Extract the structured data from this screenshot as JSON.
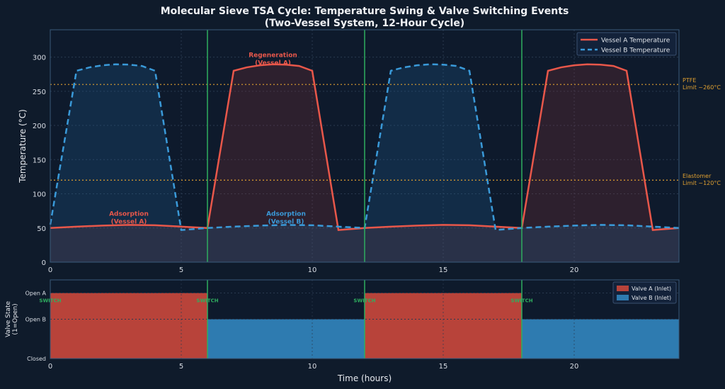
{
  "chart_data": [
    {
      "type": "line",
      "title": "Molecular Sieve TSA Cycle: Temperature Swing & Valve Switching Events",
      "subtitle": "(Two-Vessel System, 12-Hour Cycle)",
      "xlabel": "",
      "ylabel": "Temperature (°C)",
      "xlim": [
        0,
        24
      ],
      "ylim": [
        0,
        340
      ],
      "xticks": [
        0,
        5,
        10,
        15,
        20
      ],
      "yticks": [
        0,
        50,
        100,
        150,
        200,
        250,
        300
      ],
      "grid": true,
      "legend_placement": "top-right",
      "series": [
        {
          "name": "Vessel A Temperature",
          "color": "#e8574a",
          "style": "solid",
          "points": [
            [
              0,
              50
            ],
            [
              1,
              52
            ],
            [
              2,
              53.5
            ],
            [
              3,
              54.5
            ],
            [
              4,
              54
            ],
            [
              5,
              52
            ],
            [
              6,
              50
            ],
            [
              7,
              280
            ],
            [
              7.5,
              285
            ],
            [
              8,
              288
            ],
            [
              8.5,
              289.5
            ],
            [
              9,
              289
            ],
            [
              9.5,
              287
            ],
            [
              10,
              280
            ],
            [
              11,
              47
            ],
            [
              12,
              50
            ],
            [
              13,
              52
            ],
            [
              14,
              53.5
            ],
            [
              15,
              54.5
            ],
            [
              16,
              54
            ],
            [
              17,
              52
            ],
            [
              18,
              50
            ],
            [
              19,
              280
            ],
            [
              19.5,
              285
            ],
            [
              20,
              288
            ],
            [
              20.5,
              289.5
            ],
            [
              21,
              289
            ],
            [
              21.5,
              287
            ],
            [
              22,
              280
            ],
            [
              23,
              47
            ],
            [
              24,
              50
            ]
          ]
        },
        {
          "name": "Vessel B Temperature",
          "color": "#3a9ad9",
          "style": "dashed",
          "points": [
            [
              0,
              55
            ],
            [
              1,
              280
            ],
            [
              1.5,
              285
            ],
            [
              2,
              288
            ],
            [
              2.5,
              289.5
            ],
            [
              3,
              289
            ],
            [
              3.5,
              287
            ],
            [
              4,
              280
            ],
            [
              5,
              47
            ],
            [
              6,
              50
            ],
            [
              7,
              52
            ],
            [
              8,
              53.5
            ],
            [
              9,
              54.5
            ],
            [
              10,
              54
            ],
            [
              11,
              52
            ],
            [
              12,
              50
            ],
            [
              13,
              280
            ],
            [
              13.5,
              285
            ],
            [
              14,
              288
            ],
            [
              14.5,
              289.5
            ],
            [
              15,
              289
            ],
            [
              15.5,
              287
            ],
            [
              16,
              280
            ],
            [
              17,
              47
            ],
            [
              18,
              50
            ],
            [
              19,
              52
            ],
            [
              20,
              53.5
            ],
            [
              21,
              54.5
            ],
            [
              22,
              54
            ],
            [
              23,
              52
            ],
            [
              24,
              50
            ]
          ]
        }
      ],
      "reference_lines": [
        {
          "y": 260,
          "label": [
            "PTFE",
            "Limit ~260°C"
          ],
          "color": "#e0a030"
        },
        {
          "y": 120,
          "label": [
            "Elastomer",
            "Limit ~120°C"
          ],
          "color": "#e0a030"
        }
      ],
      "switch_lines": [
        6,
        12,
        18
      ],
      "switch_color": "#2fae5f",
      "annotations": [
        {
          "x": 8.5,
          "y": 300,
          "lines": [
            "Regeneration",
            "(Vessel A)"
          ],
          "color": "#e8574a"
        },
        {
          "x": 3,
          "y": 68,
          "lines": [
            "Adsorption",
            "(Vessel A)"
          ],
          "color": "#e8574a"
        },
        {
          "x": 9,
          "y": 68,
          "lines": [
            "Adsorption",
            "(Vessel B)"
          ],
          "color": "#3a9ad9"
        }
      ]
    },
    {
      "type": "area",
      "xlabel": "Time (hours)",
      "ylabel": [
        "Valve State",
        "(1=Open)"
      ],
      "xlim": [
        0,
        24
      ],
      "ylim": [
        0,
        1.2
      ],
      "xticks": [
        0,
        5,
        10,
        15,
        20
      ],
      "yticks": [
        {
          "v": 0,
          "label": "Closed"
        },
        {
          "v": 0.6,
          "label": "Open B"
        },
        {
          "v": 1,
          "label": "Open A"
        }
      ],
      "legend_placement": "top-right",
      "series": [
        {
          "name": "Valve A (Inlet)",
          "color": "#b8433a",
          "segments": [
            [
              0,
              6,
              1
            ],
            [
              12,
              18,
              1
            ]
          ]
        },
        {
          "name": "Valve B (Inlet)",
          "color": "#2e7bb0",
          "segments": [
            [
              6,
              12,
              0.6
            ],
            [
              18,
              24,
              0.6
            ]
          ]
        }
      ],
      "switch_label": "SWITCH",
      "switch_times": [
        0,
        6,
        12,
        18
      ]
    }
  ]
}
